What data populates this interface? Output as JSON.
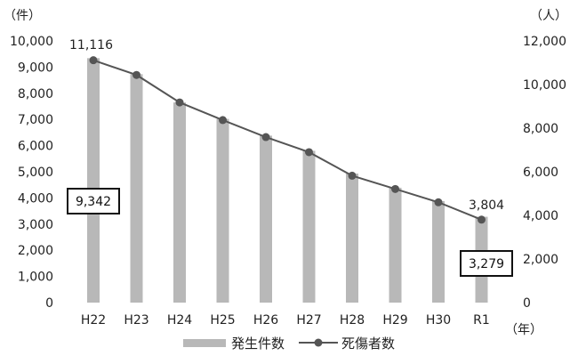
{
  "chart_data": {
    "type": "bar+line",
    "categories": [
      "H22",
      "H23",
      "H24",
      "H25",
      "H26",
      "H27",
      "H28",
      "H29",
      "H30",
      "R1"
    ],
    "series": [
      {
        "name": "発生件数",
        "type": "bar",
        "axis": "left",
        "color": "#b8b8b8",
        "values": [
          9342,
          8730,
          7650,
          7020,
          6380,
          5800,
          4930,
          4390,
          3880,
          3279
        ]
      },
      {
        "name": "死傷者数",
        "type": "line",
        "axis": "right",
        "color": "#555555",
        "values": [
          11116,
          10440,
          9180,
          8370,
          7590,
          6900,
          5820,
          5210,
          4600,
          3804
        ]
      }
    ],
    "y_left": {
      "unit": "（件）",
      "lim": [
        0,
        10000
      ],
      "ticks": [
        "0",
        "1,000",
        "2,000",
        "3,000",
        "4,000",
        "5,000",
        "6,000",
        "7,000",
        "8,000",
        "9,000",
        "10,000"
      ]
    },
    "y_right": {
      "unit": "（人）",
      "lim": [
        0,
        12000
      ],
      "ticks": [
        "0",
        "2,000",
        "4,000",
        "6,000",
        "8,000",
        "10,000",
        "12,000"
      ]
    },
    "x_unit": "（年）",
    "annotations": {
      "line_first": "11,116",
      "line_last": "3,804",
      "bar_first": "9,342",
      "bar_last": "3,279"
    },
    "legend": {
      "position": "bottom",
      "bar_label": "発生件数",
      "line_label": "死傷者数"
    },
    "grid": false
  }
}
